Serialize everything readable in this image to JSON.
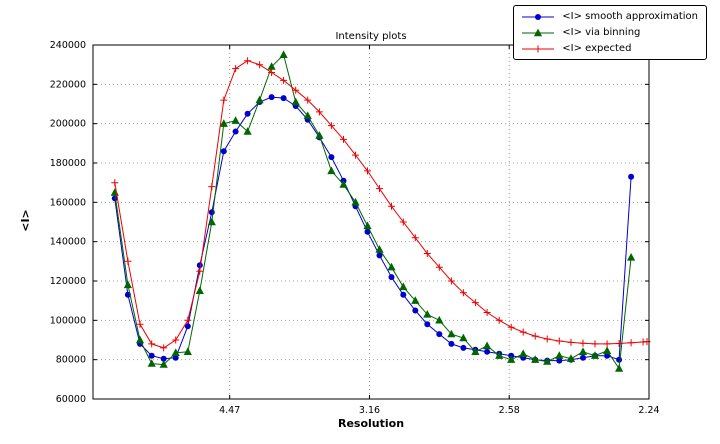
{
  "figure": {
    "title": "Intensity plots",
    "xlabel": "Resolution",
    "ylabel": "<I>"
  },
  "chart_data": {
    "type": "line",
    "title": "Intensity plots",
    "xlabel": "Resolution",
    "ylabel": "<I>",
    "x_axis_note": "x coordinate is 1/d^2; tick labels show resolution d in Angstrom",
    "xlim": [
      0.0011,
      0.2
    ],
    "ylim": [
      60000,
      240000
    ],
    "grid": true,
    "grid_style": "dotted",
    "grid_color": "#a0a0a0",
    "legend_position": "upper right outside plot",
    "xticks": [
      {
        "pos": 0.05,
        "label": "4.47"
      },
      {
        "pos": 0.1,
        "label": "3.16"
      },
      {
        "pos": 0.15,
        "label": "2.58"
      },
      {
        "pos": 0.2,
        "label": "2.24"
      }
    ],
    "yticks": [
      {
        "pos": 60000,
        "label": "60000"
      },
      {
        "pos": 80000,
        "label": "80000"
      },
      {
        "pos": 100000,
        "label": "100000"
      },
      {
        "pos": 120000,
        "label": "120000"
      },
      {
        "pos": 140000,
        "label": "140000"
      },
      {
        "pos": 160000,
        "label": "160000"
      },
      {
        "pos": 180000,
        "label": "180000"
      },
      {
        "pos": 200000,
        "label": "200000"
      },
      {
        "pos": 220000,
        "label": "220000"
      },
      {
        "pos": 240000,
        "label": "240000"
      }
    ],
    "series": [
      {
        "name": "<I> smooth approximation",
        "color": "#0000cc",
        "marker": "circle",
        "x": [
          0.0089,
          0.0136,
          0.0179,
          0.0221,
          0.0264,
          0.0307,
          0.035,
          0.0393,
          0.0436,
          0.0479,
          0.0521,
          0.0564,
          0.0607,
          0.065,
          0.0693,
          0.0736,
          0.0779,
          0.0821,
          0.0864,
          0.0907,
          0.095,
          0.0993,
          0.1036,
          0.1079,
          0.1121,
          0.1164,
          0.1207,
          0.125,
          0.1293,
          0.1336,
          0.1379,
          0.1421,
          0.1464,
          0.1507,
          0.155,
          0.1593,
          0.1636,
          0.1679,
          0.1721,
          0.1764,
          0.1807,
          0.185,
          0.1893,
          0.1936
        ],
        "y": [
          162000,
          113000,
          88000,
          82000,
          80500,
          81000,
          97000,
          128000,
          155000,
          186000,
          196000,
          205000,
          211000,
          213500,
          213000,
          209000,
          202000,
          193000,
          183000,
          171000,
          158000,
          145000,
          133000,
          122000,
          113000,
          105000,
          98000,
          93000,
          88000,
          86000,
          85000,
          84000,
          83000,
          82000,
          81000,
          80000,
          79500,
          79500,
          80000,
          81000,
          82000,
          82000,
          80000,
          173000
        ]
      },
      {
        "name": "<I> via binning",
        "color": "#006600",
        "marker": "triangle",
        "x": [
          0.0089,
          0.0136,
          0.0179,
          0.0221,
          0.0264,
          0.0307,
          0.035,
          0.0393,
          0.0436,
          0.0479,
          0.0521,
          0.0564,
          0.0607,
          0.065,
          0.0693,
          0.0736,
          0.0779,
          0.0821,
          0.0864,
          0.0907,
          0.095,
          0.0993,
          0.1036,
          0.1079,
          0.1121,
          0.1164,
          0.1207,
          0.125,
          0.1293,
          0.1336,
          0.1379,
          0.1421,
          0.1464,
          0.1507,
          0.155,
          0.1593,
          0.1636,
          0.1679,
          0.1721,
          0.1764,
          0.1807,
          0.185,
          0.1893,
          0.1936
        ],
        "y": [
          165000,
          118000,
          90000,
          78000,
          77500,
          83500,
          84000,
          115000,
          150000,
          200000,
          201500,
          196000,
          212000,
          229000,
          235000,
          211000,
          204000,
          194000,
          176000,
          169000,
          160000,
          148000,
          136000,
          127000,
          117000,
          110000,
          103000,
          100000,
          93000,
          91000,
          84000,
          87000,
          82000,
          80000,
          83000,
          80000,
          79000,
          82000,
          80500,
          84000,
          82000,
          84500,
          75500,
          132000
        ]
      },
      {
        "name": "<I> expected",
        "color": "#ee0000",
        "marker": "plus",
        "x": [
          0.0089,
          0.0136,
          0.0179,
          0.0221,
          0.0264,
          0.0307,
          0.035,
          0.0393,
          0.0436,
          0.0479,
          0.0521,
          0.0564,
          0.0607,
          0.065,
          0.0693,
          0.0736,
          0.0779,
          0.0821,
          0.0864,
          0.0907,
          0.095,
          0.0993,
          0.1036,
          0.1079,
          0.1121,
          0.1164,
          0.1207,
          0.125,
          0.1293,
          0.1336,
          0.1379,
          0.1421,
          0.1464,
          0.1507,
          0.155,
          0.1593,
          0.1636,
          0.1679,
          0.1721,
          0.1764,
          0.1807,
          0.185,
          0.1893,
          0.1936,
          0.1979,
          0.1993
        ],
        "y": [
          170000,
          130000,
          98000,
          88000,
          86000,
          90000,
          100000,
          125000,
          168000,
          212000,
          228000,
          232000,
          230000,
          226000,
          222000,
          217000,
          212000,
          206000,
          199000,
          192000,
          184000,
          176000,
          167000,
          158000,
          150000,
          142000,
          134000,
          127000,
          120000,
          114000,
          109000,
          104000,
          100000,
          96500,
          94000,
          92000,
          90500,
          89500,
          88800,
          88300,
          88000,
          88000,
          88200,
          88600,
          89000,
          89200
        ]
      }
    ]
  }
}
